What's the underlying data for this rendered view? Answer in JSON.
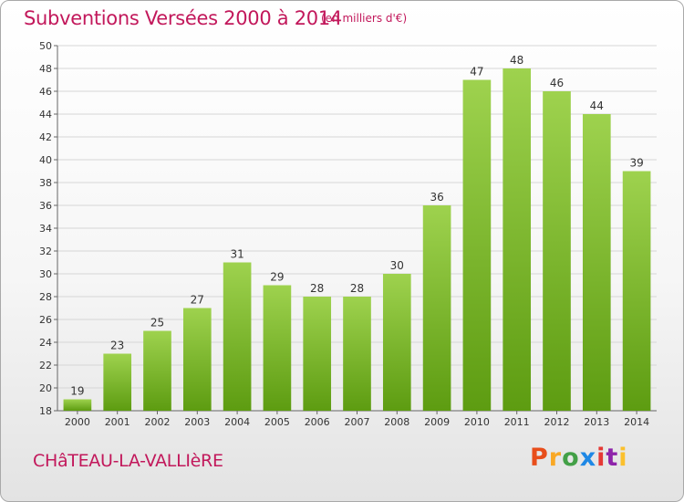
{
  "header": {
    "title": "Subventions Versées 2000 à 2014",
    "unit": "(en milliers d'€)"
  },
  "footer": {
    "commune": "CHâTEAU-LA-VALLIèRE",
    "brand": "Proxiti",
    "brand_colors": [
      "#e84e1b",
      "#f9a825",
      "#43a047",
      "#1e88e5",
      "#e53935",
      "#8e24aa",
      "#fbc02d"
    ]
  },
  "colors": {
    "bar_top": "#9ed24e",
    "bar_bottom": "#5d9c11",
    "title": "#c2185b"
  },
  "chart_data": {
    "type": "bar",
    "categories": [
      "2000",
      "2001",
      "2002",
      "2003",
      "2004",
      "2005",
      "2006",
      "2007",
      "2008",
      "2009",
      "2010",
      "2011",
      "2012",
      "2013",
      "2014"
    ],
    "values": [
      19,
      23,
      25,
      27,
      31,
      29,
      28,
      28,
      30,
      36,
      47,
      48,
      46,
      44,
      39
    ],
    "title": "Subventions Versées 2000 à 2014",
    "subtitle": "(en milliers d'€)",
    "xlabel": "",
    "ylabel": "",
    "ylim": [
      18,
      50
    ],
    "yticks": [
      18,
      20,
      22,
      24,
      26,
      28,
      30,
      32,
      34,
      36,
      38,
      40,
      42,
      44,
      46,
      48,
      50
    ],
    "grid": true,
    "legend": "none"
  }
}
